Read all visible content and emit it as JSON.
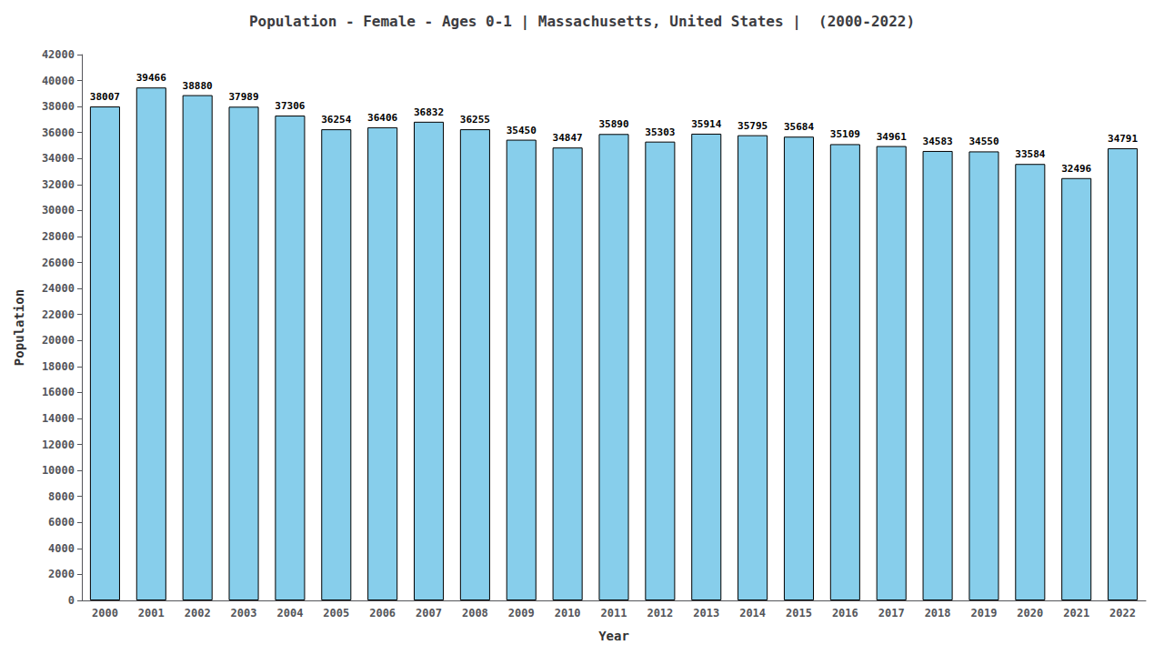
{
  "chart_data": {
    "type": "bar",
    "title": "Population - Female - Ages 0-1 | Massachusetts, United States |  (2000-2022)",
    "xlabel": "Year",
    "ylabel": "Population",
    "categories": [
      "2000",
      "2001",
      "2002",
      "2003",
      "2004",
      "2005",
      "2006",
      "2007",
      "2008",
      "2009",
      "2010",
      "2011",
      "2012",
      "2013",
      "2014",
      "2015",
      "2016",
      "2017",
      "2018",
      "2019",
      "2020",
      "2021",
      "2022"
    ],
    "values": [
      38007,
      39466,
      38880,
      37989,
      37306,
      36254,
      36406,
      36832,
      36255,
      35450,
      34847,
      35890,
      35303,
      35914,
      35795,
      35684,
      35109,
      34961,
      34583,
      34550,
      33584,
      32496,
      34791
    ],
    "color": "#87ceeb",
    "ylim": [
      0,
      42000
    ],
    "yticks": [
      0,
      2000,
      4000,
      6000,
      8000,
      10000,
      12000,
      14000,
      16000,
      18000,
      20000,
      22000,
      24000,
      26000,
      28000,
      30000,
      32000,
      34000,
      36000,
      38000,
      40000,
      42000
    ],
    "grid": false,
    "data_labels": true
  }
}
